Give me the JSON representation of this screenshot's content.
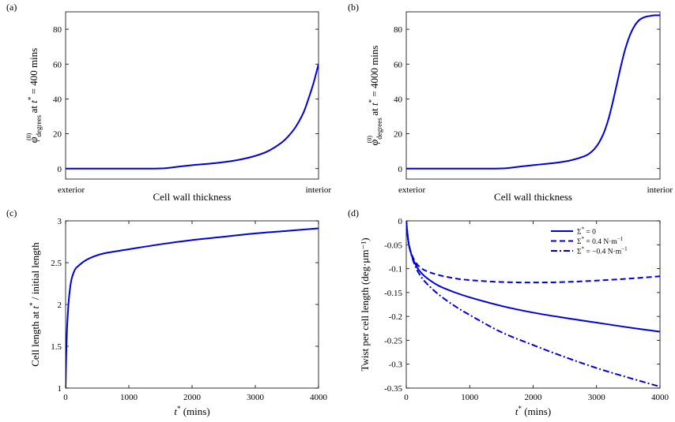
{
  "colors": {
    "series": "#0000dd",
    "axis": "#000000",
    "background": "#ffffff"
  },
  "chart_data": [
    {
      "panel_label": "(a)",
      "type": "line",
      "xlabel": "Cell wall thickness",
      "ylabel": "φ(0)degrees at t* = 400 mins",
      "x_tick_labels": [
        "exterior",
        "interior"
      ],
      "xlim": [
        0,
        1
      ],
      "ylim": [
        -6,
        90
      ],
      "yticks": [
        0,
        20,
        40,
        60,
        80
      ],
      "ytick_labels": [
        "0",
        "20",
        "40",
        "60",
        "80"
      ],
      "series": [
        {
          "x": [
            0,
            0.1,
            0.2,
            0.3,
            0.35,
            0.4,
            0.45,
            0.5,
            0.55,
            0.6,
            0.65,
            0.7,
            0.75,
            0.8,
            0.85,
            0.88,
            0.91,
            0.94,
            0.96,
            0.98,
            1.0
          ],
          "y": [
            0,
            0,
            0,
            0,
            0,
            0.3,
            1.2,
            2.0,
            2.6,
            3.3,
            4.2,
            5.5,
            7.3,
            10.0,
            14.5,
            18.5,
            24,
            32,
            40,
            49,
            60
          ]
        }
      ]
    },
    {
      "panel_label": "(b)",
      "type": "line",
      "xlabel": "Cell wall thickness",
      "ylabel": "φ(0)degrees at t* = 4000 mins",
      "x_tick_labels": [
        "exterior",
        "interior"
      ],
      "xlim": [
        0,
        1
      ],
      "ylim": [
        -6,
        90
      ],
      "yticks": [
        0,
        20,
        40,
        60,
        80
      ],
      "ytick_labels": [
        "0",
        "20",
        "40",
        "60",
        "80"
      ],
      "series": [
        {
          "x": [
            0,
            0.1,
            0.2,
            0.3,
            0.35,
            0.4,
            0.45,
            0.5,
            0.55,
            0.6,
            0.65,
            0.7,
            0.72,
            0.74,
            0.76,
            0.78,
            0.8,
            0.82,
            0.84,
            0.86,
            0.88,
            0.9,
            0.92,
            0.94,
            0.96,
            0.98,
            1.0
          ],
          "y": [
            0,
            0,
            0,
            0,
            0,
            0.3,
            1.2,
            2.0,
            2.7,
            3.5,
            4.8,
            7.0,
            8.5,
            11,
            15,
            21,
            30,
            42,
            55,
            67,
            76,
            82,
            85.5,
            87,
            87.6,
            88,
            88
          ]
        }
      ]
    },
    {
      "panel_label": "(c)",
      "type": "line",
      "xlabel": "t* (mins)",
      "ylabel": "Cell length at t* / initial length",
      "xlim": [
        0,
        4000
      ],
      "ylim": [
        1,
        3
      ],
      "xticks": [
        0,
        1000,
        2000,
        3000,
        4000
      ],
      "xtick_labels": [
        "0",
        "1000",
        "2000",
        "3000",
        "4000"
      ],
      "yticks": [
        1,
        1.5,
        2,
        2.5,
        3
      ],
      "ytick_labels": [
        "1",
        "1.5",
        "2",
        "2.5",
        "3"
      ],
      "series": [
        {
          "x": [
            0,
            10,
            25,
            50,
            75,
            100,
            150,
            200,
            300,
            400,
            600,
            1000,
            1500,
            2000,
            2500,
            3000,
            3500,
            4000
          ],
          "y": [
            1.0,
            1.4,
            1.75,
            2.05,
            2.22,
            2.32,
            2.42,
            2.46,
            2.52,
            2.56,
            2.61,
            2.66,
            2.72,
            2.77,
            2.81,
            2.85,
            2.88,
            2.91
          ]
        }
      ]
    },
    {
      "panel_label": "(d)",
      "type": "line",
      "xlabel": "t* (mins)",
      "ylabel": "Twist per cell length (deg·μm⁻¹)",
      "xlim": [
        0,
        4000
      ],
      "ylim": [
        -0.35,
        0
      ],
      "xticks": [
        0,
        1000,
        2000,
        3000,
        4000
      ],
      "xtick_labels": [
        "0",
        "1000",
        "2000",
        "3000",
        "4000"
      ],
      "yticks": [
        0,
        -0.05,
        -0.1,
        -0.15,
        -0.2,
        -0.25,
        -0.3,
        -0.35
      ],
      "ytick_labels": [
        "0",
        "-0.05",
        "-0.1",
        "-0.15",
        "-0.2",
        "-0.25",
        "-0.3",
        "-0.35"
      ],
      "legend_position": "top-right",
      "series": [
        {
          "name": "Σ* = 0",
          "dash": "solid",
          "x": [
            0,
            25,
            50,
            100,
            150,
            200,
            300,
            500,
            750,
            1000,
            1500,
            2000,
            2500,
            3000,
            3500,
            4000
          ],
          "y": [
            0,
            -0.035,
            -0.055,
            -0.078,
            -0.092,
            -0.103,
            -0.117,
            -0.135,
            -0.149,
            -0.16,
            -0.178,
            -0.192,
            -0.203,
            -0.213,
            -0.223,
            -0.232
          ]
        },
        {
          "name": "Σ* = 0.4 N·m⁻¹",
          "dash": "dashed",
          "x": [
            0,
            25,
            50,
            100,
            150,
            200,
            300,
            500,
            750,
            1000,
            1500,
            2000,
            2500,
            3000,
            3500,
            4000
          ],
          "y": [
            0,
            -0.035,
            -0.055,
            -0.075,
            -0.087,
            -0.095,
            -0.104,
            -0.113,
            -0.12,
            -0.124,
            -0.128,
            -0.129,
            -0.128,
            -0.125,
            -0.121,
            -0.116
          ]
        },
        {
          "name": "Σ* = −0.4 N·m⁻¹",
          "dash": "dashdot",
          "x": [
            0,
            25,
            50,
            100,
            150,
            200,
            300,
            500,
            750,
            1000,
            1500,
            2000,
            2500,
            3000,
            3500,
            4000
          ],
          "y": [
            0,
            -0.035,
            -0.056,
            -0.08,
            -0.097,
            -0.11,
            -0.128,
            -0.153,
            -0.177,
            -0.197,
            -0.233,
            -0.26,
            -0.285,
            -0.308,
            -0.328,
            -0.347
          ]
        }
      ]
    }
  ]
}
